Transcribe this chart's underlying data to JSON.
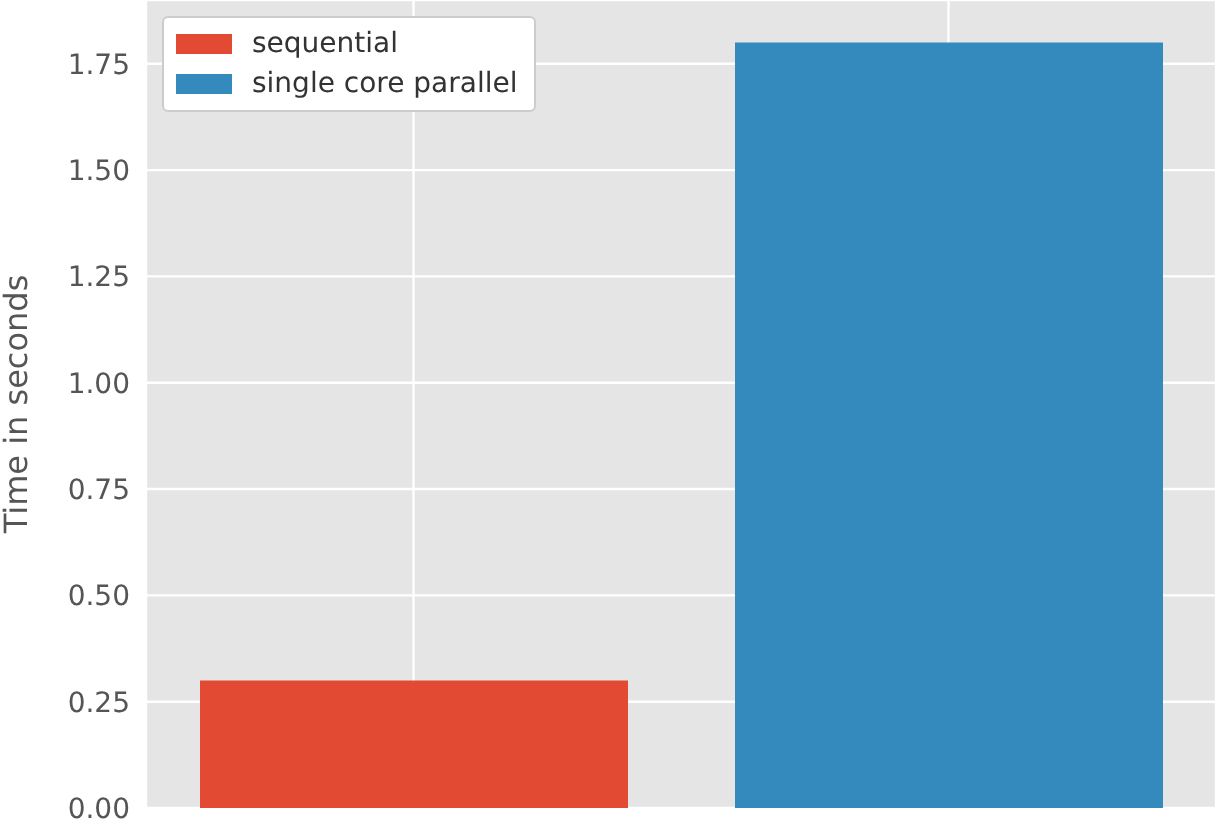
{
  "chart_data": {
    "type": "bar",
    "ylabel": "Time in seconds",
    "categories": [
      null,
      null
    ],
    "stacked": true,
    "series": [
      {
        "name": "sequential",
        "color": "#e24a33",
        "values": [
          0.3,
          null
        ]
      },
      {
        "name": "single core parallel",
        "color": "#348abd",
        "values": [
          null,
          1.8
        ]
      }
    ],
    "ylim": [
      0,
      1.9
    ],
    "yticks": [
      {
        "value": 0,
        "label": "0.00"
      },
      {
        "value": 0.25,
        "label": "0.25"
      },
      {
        "value": 0.5,
        "label": "0.50"
      },
      {
        "value": 0.75,
        "label": "0.75"
      },
      {
        "value": 1,
        "label": "1.00"
      },
      {
        "value": 1.25,
        "label": "1.25"
      },
      {
        "value": 1.5,
        "label": "1.50"
      },
      {
        "value": 1.75,
        "label": "1.75"
      }
    ],
    "grid": true,
    "legend": "top left"
  }
}
